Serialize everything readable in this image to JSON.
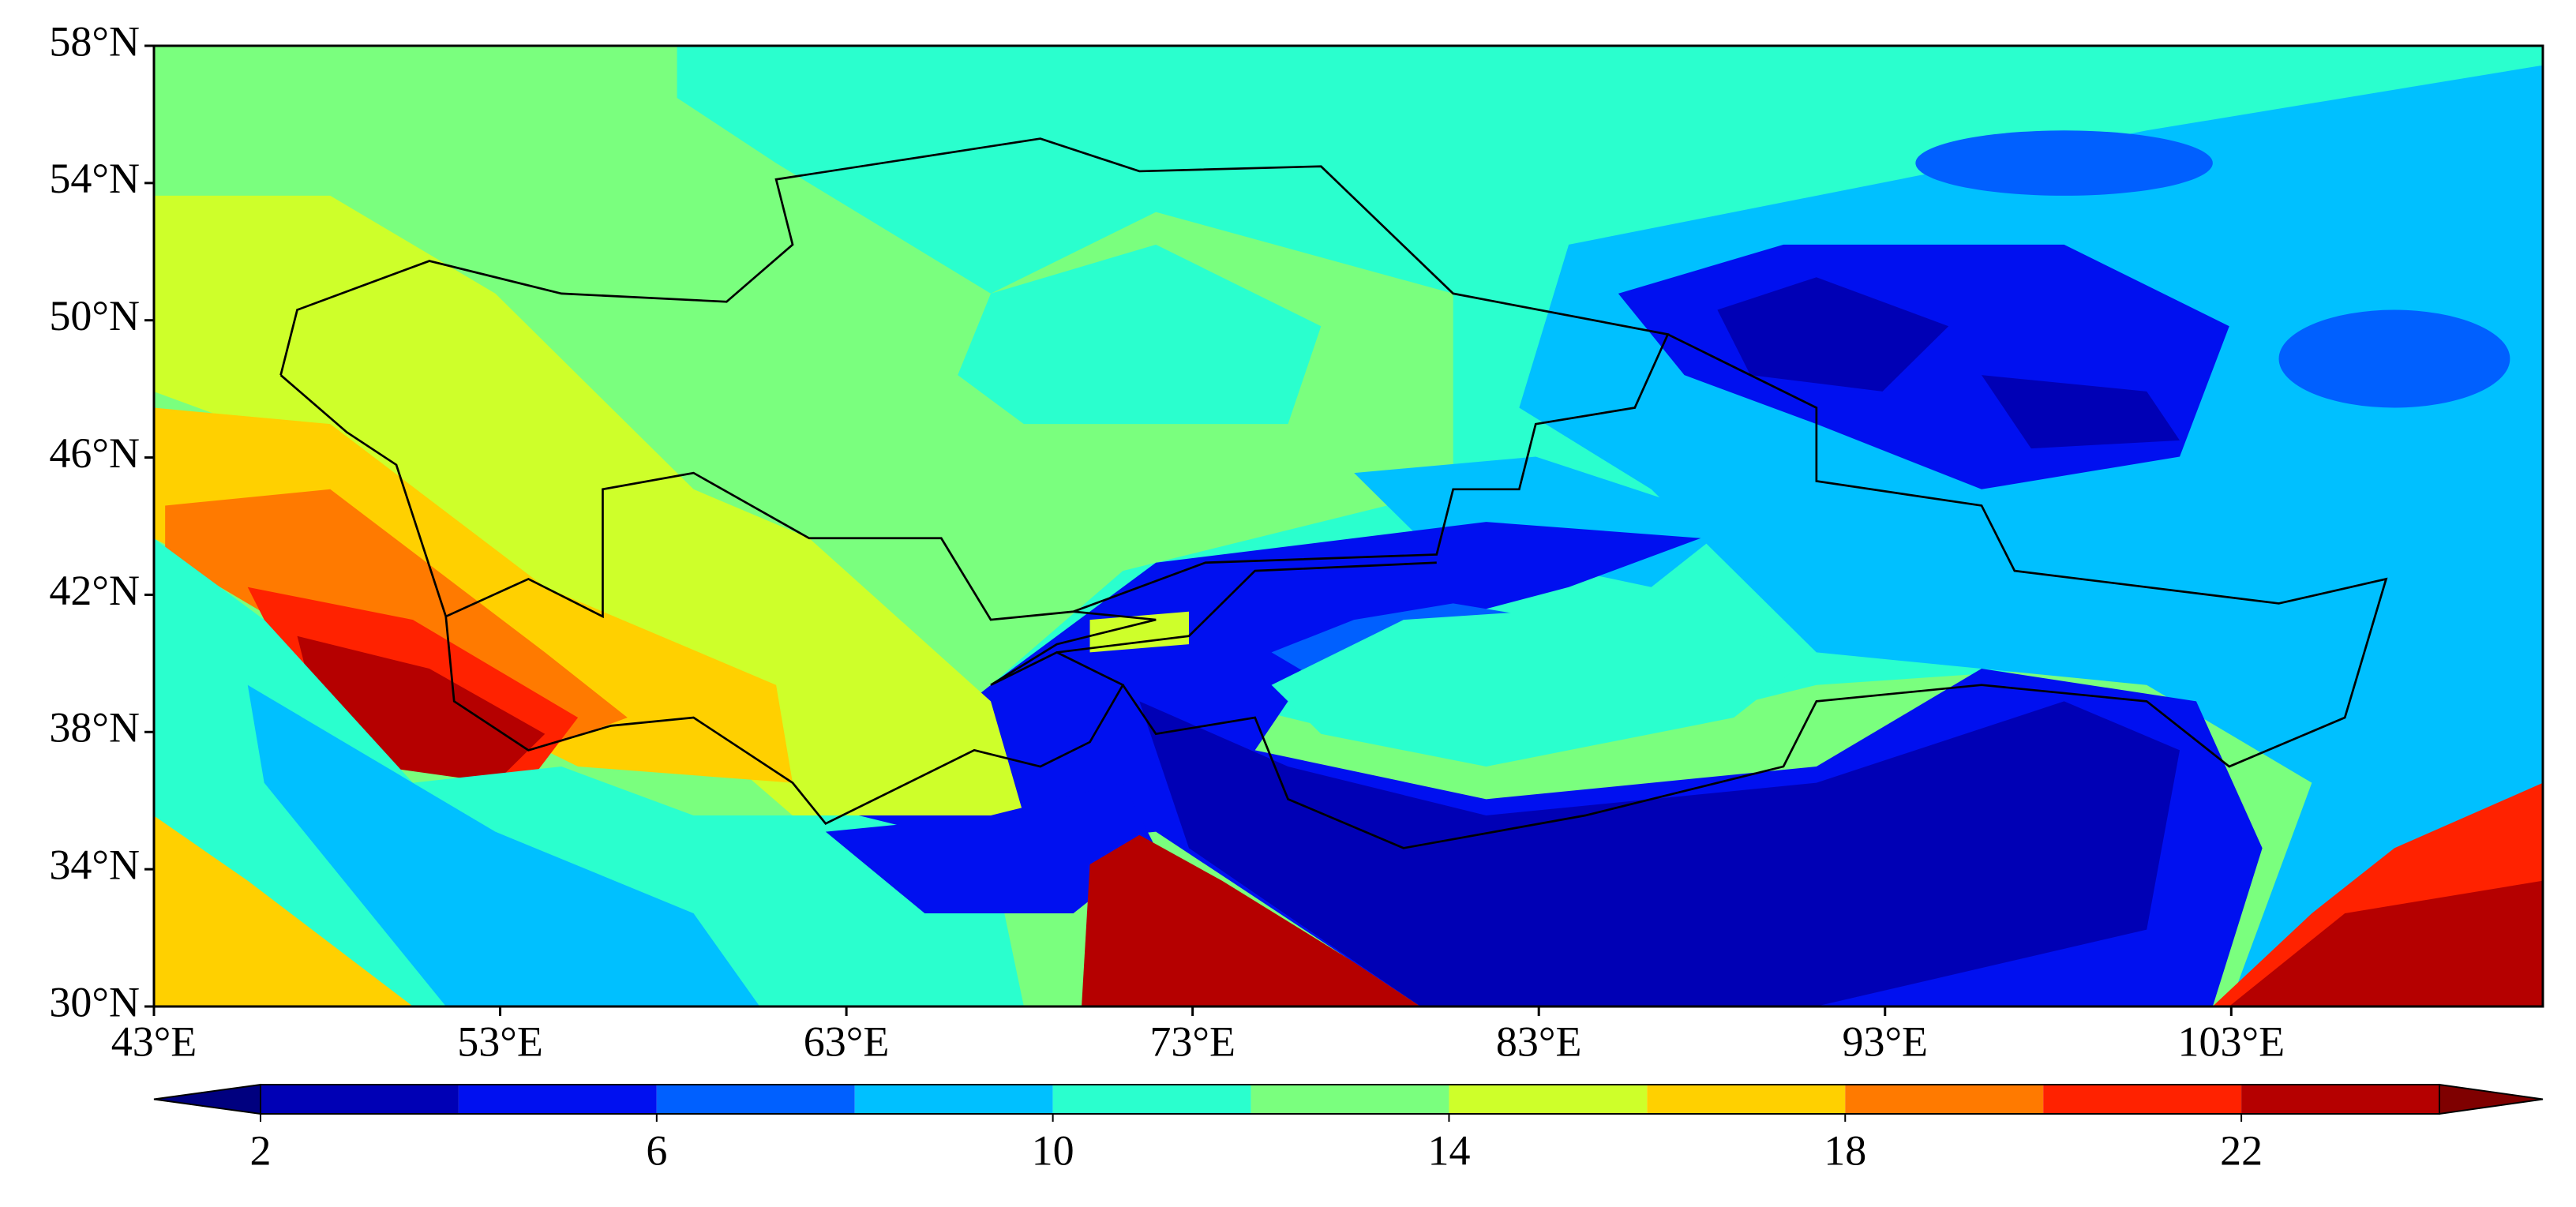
{
  "map": {
    "xlim": [
      43,
      112
    ],
    "ylim": [
      30,
      58
    ],
    "xticks": [
      {
        "value": 43,
        "label": "43°E"
      },
      {
        "value": 53,
        "label": "53°E"
      },
      {
        "value": 63,
        "label": "63°E"
      },
      {
        "value": 73,
        "label": "73°E"
      },
      {
        "value": 83,
        "label": "83°E"
      },
      {
        "value": 93,
        "label": "93°E"
      },
      {
        "value": 103,
        "label": "103°E"
      }
    ],
    "yticks": [
      {
        "value": 30,
        "label": "30°N"
      },
      {
        "value": 34,
        "label": "34°N"
      },
      {
        "value": 38,
        "label": "38°N"
      },
      {
        "value": 42,
        "label": "42°N"
      },
      {
        "value": 46,
        "label": "46°N"
      },
      {
        "value": 50,
        "label": "50°N"
      },
      {
        "value": 54,
        "label": "54°N"
      },
      {
        "value": 58,
        "label": "58°N"
      }
    ],
    "colorbar": {
      "levels": [
        2,
        4,
        6,
        8,
        10,
        12,
        14,
        16,
        18,
        20,
        22,
        24
      ],
      "colors": [
        "#0000b5",
        "#0010f0",
        "#0060ff",
        "#00c0ff",
        "#2affce",
        "#7aff7e",
        "#ceff2a",
        "#ffd000",
        "#ff7a00",
        "#ff2200",
        "#b50000"
      ],
      "under_color": "#00007f",
      "over_color": "#7f0000",
      "ticks": [
        2,
        6,
        10,
        14,
        18,
        22
      ]
    }
  }
}
